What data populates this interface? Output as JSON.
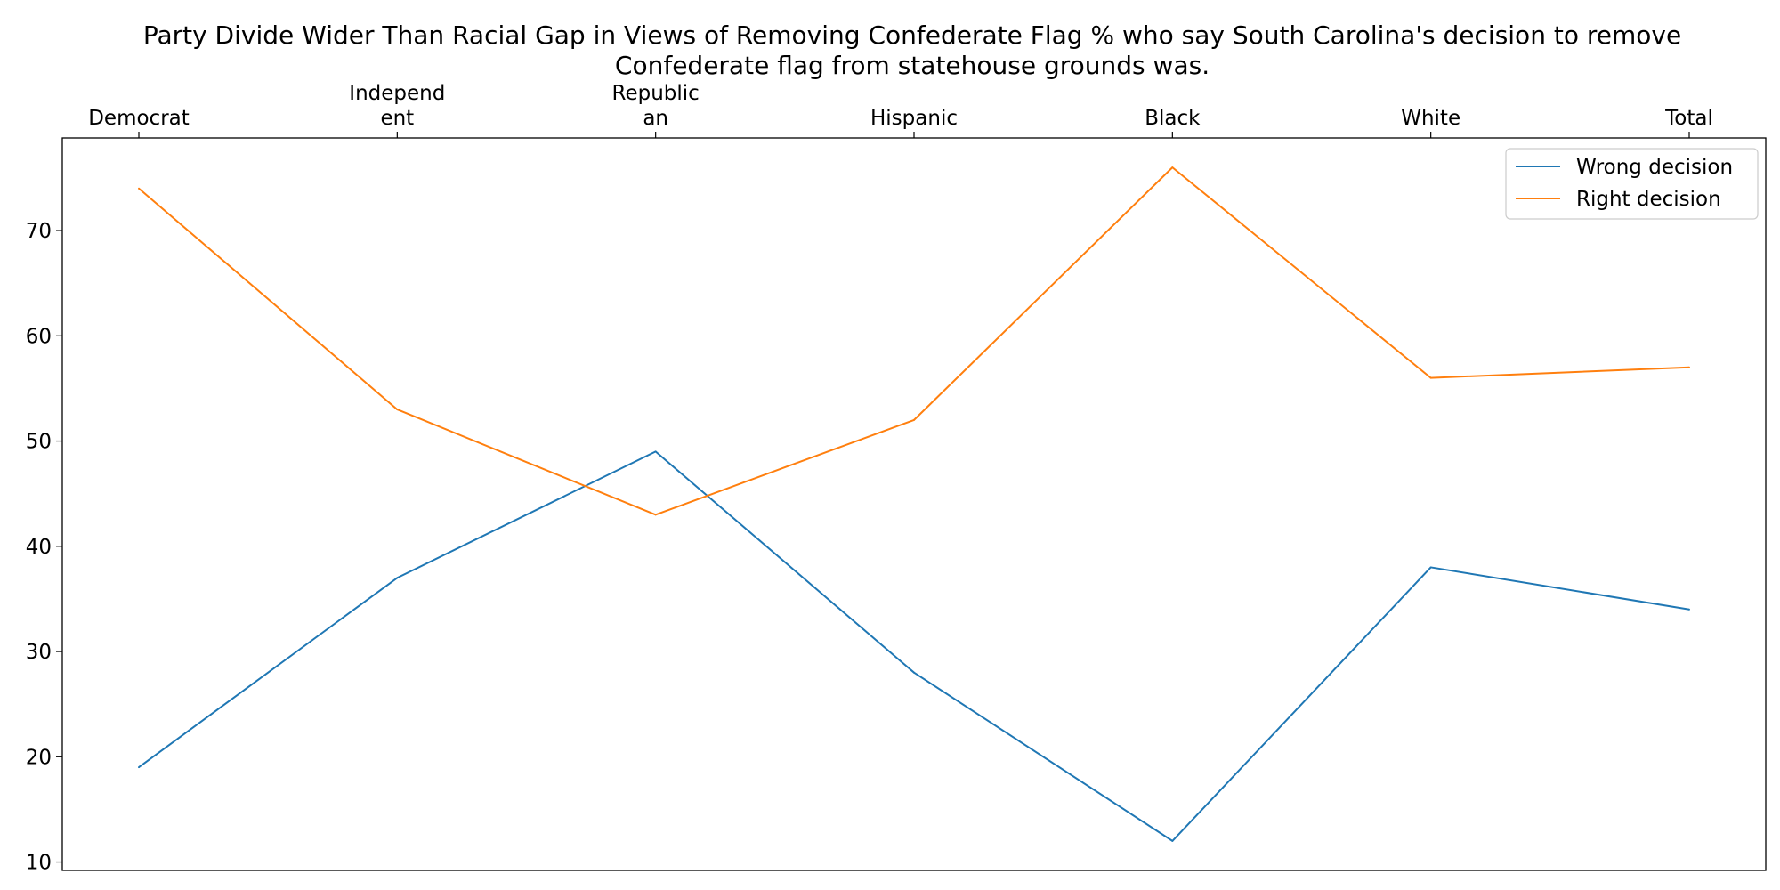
{
  "chart_data": {
    "type": "line",
    "title": "Party Divide Wider Than Racial Gap in Views of Removing Confederate Flag % who say South Carolina's decision to remove Confederate flag from statehouse grounds was.",
    "title_lines": [
      "Party Divide Wider Than Racial Gap in Views of Removing Confederate Flag % who say South Carolina's decision to remove",
      "Confederate flag from statehouse grounds was."
    ],
    "categories": [
      "Democrat",
      "Independent",
      "Republican",
      "Hispanic",
      "Black",
      "White",
      "Total"
    ],
    "category_tick_lines": [
      [
        "Democrat"
      ],
      [
        "Independ",
        "ent"
      ],
      [
        "Republic",
        "an"
      ],
      [
        "Hispanic"
      ],
      [
        "Black"
      ],
      [
        "White"
      ],
      [
        "Total"
      ]
    ],
    "series": [
      {
        "name": "Wrong decision",
        "values": [
          19,
          37,
          49,
          28,
          12,
          38,
          34
        ],
        "color": "#1f77b4"
      },
      {
        "name": "Right decision",
        "values": [
          74,
          53,
          43,
          52,
          76,
          56,
          57
        ],
        "color": "#ff7f0e"
      }
    ],
    "xlabel": "",
    "ylabel": "",
    "ylim": [
      9.2,
      78.8
    ],
    "yticks": [
      10,
      20,
      30,
      40,
      50,
      60,
      70
    ],
    "x_axis_position": "top",
    "grid": false,
    "legend_position": "top-right"
  }
}
